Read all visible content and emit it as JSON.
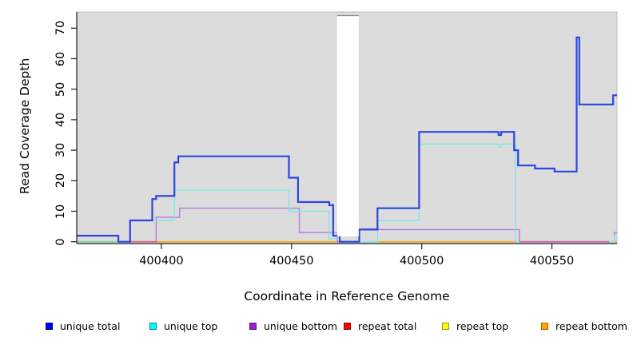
{
  "chart_data": {
    "type": "line",
    "subtype": "step-coverage",
    "xlabel": "Coordinate in Reference Genome",
    "ylabel": "Read Coverage Depth",
    "x_ticks": [
      400400,
      400450,
      400500,
      400550
    ],
    "y_ticks": [
      0,
      10,
      20,
      30,
      40,
      50,
      60,
      70
    ],
    "xlim": [
      400367.5,
      400575
    ],
    "ylim": [
      0,
      75
    ],
    "grid": false,
    "plot_bg_color": "#DCDCDC",
    "axis_color": "#1a1a1a",
    "masked_region": {
      "x_start": 400467.5,
      "x_end": 400475.8,
      "color": "#FFFFFF"
    },
    "x_end": 400575,
    "series": [
      {
        "name": "repeat total",
        "line_color": "#EE2222",
        "width": 1.0,
        "step_points": [
          [
            400367.5,
            0
          ]
        ]
      },
      {
        "name": "repeat top",
        "line_color": "#FFEE00",
        "width": 1.0,
        "step_points": [
          [
            400367.5,
            0
          ]
        ]
      },
      {
        "name": "repeat bottom",
        "line_color": "#FFA217",
        "width": 1.5,
        "step_points": [
          [
            400367.5,
            0
          ]
        ]
      },
      {
        "name": "unique bottom",
        "line_color": "#B47BE0",
        "width": 1.4,
        "step_points": [
          [
            400367.5,
            0
          ],
          [
            400398,
            8
          ],
          [
            400407,
            11
          ],
          [
            400453,
            3
          ],
          [
            400467.5,
            0
          ],
          [
            400476,
            4
          ],
          [
            400537.5,
            0
          ],
          [
            400574,
            3
          ]
        ]
      },
      {
        "name": "unique top",
        "line_color": "#7DE9E6",
        "width": 1.4,
        "step_points": [
          [
            400367.5,
            0
          ],
          [
            400388,
            7
          ],
          [
            400405,
            17
          ],
          [
            400449,
            10
          ],
          [
            400464.5,
            1
          ],
          [
            400468.5,
            0
          ],
          [
            400483,
            7
          ],
          [
            400499,
            32
          ],
          [
            400529.5,
            31
          ],
          [
            400530.5,
            32
          ],
          [
            400536,
            0
          ],
          [
            400574,
            2
          ]
        ]
      },
      {
        "name": "unique total",
        "line_color": "#2B45E0",
        "width": 2.2,
        "step_points": [
          [
            400367.5,
            2
          ],
          [
            400383.5,
            0
          ],
          [
            400388,
            7
          ],
          [
            400396.5,
            14
          ],
          [
            400398,
            15
          ],
          [
            400405,
            26
          ],
          [
            400406.5,
            28
          ],
          [
            400449,
            21
          ],
          [
            400452.5,
            13
          ],
          [
            400464.5,
            12
          ],
          [
            400466,
            2
          ],
          [
            400468.5,
            0
          ],
          [
            400476,
            4
          ],
          [
            400483,
            11
          ],
          [
            400499,
            36
          ],
          [
            400529.5,
            35
          ],
          [
            400530.5,
            36
          ],
          [
            400535.5,
            30
          ],
          [
            400537,
            25
          ],
          [
            400543.5,
            24
          ],
          [
            400551,
            23
          ],
          [
            400559.5,
            67
          ],
          [
            400560.5,
            45
          ],
          [
            400573.5,
            48
          ]
        ]
      }
    ],
    "zero_line_blend_patches": [
      {
        "x_start": 400367.5,
        "x_end": 400388,
        "color": "#7ECF9C"
      },
      {
        "x_start": 400388,
        "x_end": 400398.5,
        "color": "#E0607E"
      },
      {
        "x_start": 400537.5,
        "x_end": 400572,
        "color": "#CC55AA"
      }
    ]
  },
  "legend": {
    "items": [
      {
        "label": "unique total",
        "fill": "#0000EE",
        "border": "#000099"
      },
      {
        "label": "unique top",
        "fill": "#00FFFF",
        "border": "#008B8B"
      },
      {
        "label": "unique bottom",
        "fill": "#9922CC",
        "border": "#661499"
      },
      {
        "label": "repeat total",
        "fill": "#FF0000",
        "border": "#990000"
      },
      {
        "label": "repeat top",
        "fill": "#FFFF00",
        "border": "#999900"
      },
      {
        "label": "repeat bottom",
        "fill": "#FFA500",
        "border": "#AA6600"
      }
    ]
  }
}
